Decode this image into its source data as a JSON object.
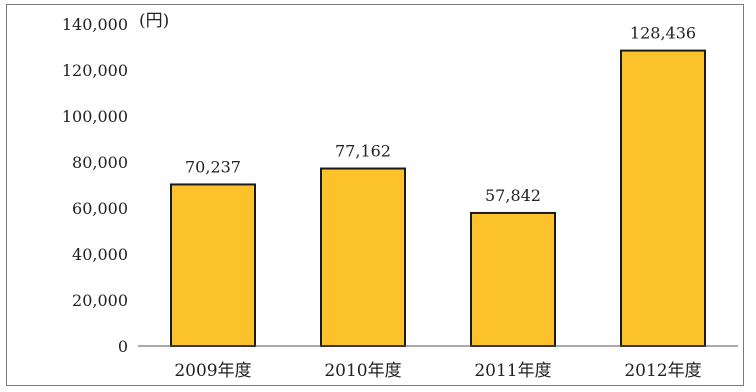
{
  "chart_data": {
    "type": "bar",
    "title": "",
    "unit": "(円)",
    "categories": [
      "2009年度",
      "2010年度",
      "2011年度",
      "2012年度"
    ],
    "values": [
      70237,
      77162,
      57842,
      128436
    ],
    "data_labels": [
      "70,237",
      "77,162",
      "57,842",
      "128,436"
    ],
    "ylim": [
      0,
      140000
    ],
    "yticks": [
      0,
      20000,
      40000,
      60000,
      80000,
      100000,
      120000,
      140000
    ],
    "ytick_labels": [
      "0",
      "20,000",
      "40,000",
      "60,000",
      "80,000",
      "100,000",
      "120,000",
      "140,000"
    ],
    "grid": false,
    "colors": {
      "bar_fill": "#fcc22c",
      "bar_stroke": "#1a1a1a",
      "frame": "#7a7a7a"
    }
  }
}
